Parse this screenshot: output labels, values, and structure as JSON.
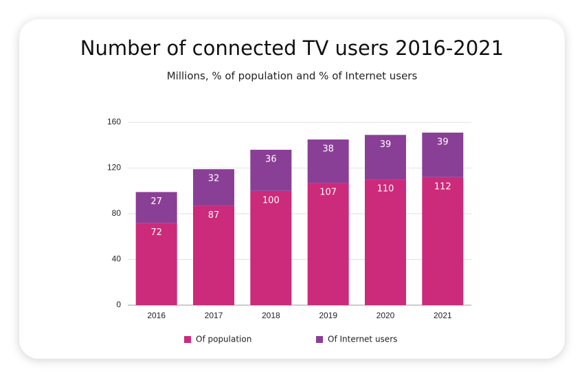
{
  "chart_data": {
    "type": "stacked-bar",
    "title": "Number of connected TV users 2016-2021",
    "subtitle": "Millions, % of population and % of Internet users",
    "categories": [
      "2016",
      "2017",
      "2018",
      "2019",
      "2020",
      "2021"
    ],
    "series": [
      {
        "name": "Of population",
        "color": "#cc2a7a",
        "values": [
          72,
          87,
          100,
          107,
          110,
          112
        ]
      },
      {
        "name": "Of Internet users",
        "color": "#8a3f96",
        "values": [
          27,
          32,
          36,
          38,
          39,
          39
        ]
      }
    ],
    "ylim": [
      0,
      160
    ],
    "yticks": [
      0,
      40,
      80,
      120,
      160
    ],
    "grid": true,
    "legend": "bottom"
  }
}
